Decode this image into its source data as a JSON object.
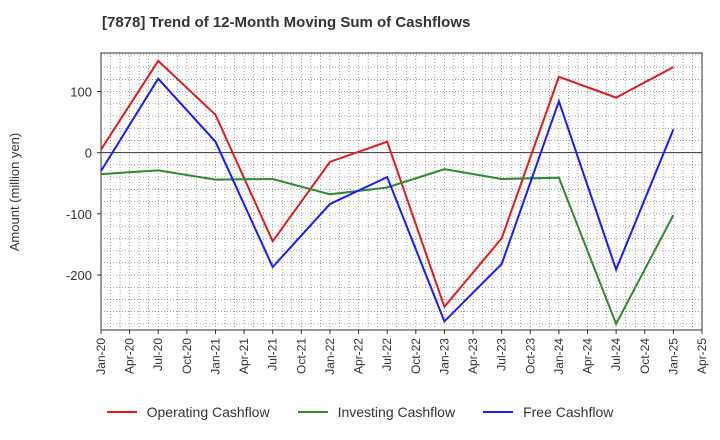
{
  "chart_data": {
    "type": "line",
    "title": "[7878]  Trend of 12-Month Moving Sum of Cashflows",
    "xlabel": "",
    "ylabel": "Amount (million yen)",
    "ylim": [
      -290,
      163
    ],
    "yticks": [
      100,
      0,
      -100,
      -200
    ],
    "x_tick_labels": [
      "Jan-20",
      "Apr-20",
      "Jul-20",
      "Oct-20",
      "Jan-21",
      "Apr-21",
      "Jul-21",
      "Oct-21",
      "Jan-22",
      "Apr-22",
      "Jul-22",
      "Oct-22",
      "Jan-23",
      "Apr-23",
      "Jul-23",
      "Oct-23",
      "Jan-24",
      "Apr-24",
      "Jul-24",
      "Oct-24",
      "Jan-25",
      "Apr-25"
    ],
    "x": [
      "Jan-20",
      "Jul-20",
      "Jan-21",
      "Jul-21",
      "Jan-22",
      "Jul-22",
      "Jan-23",
      "Jul-23",
      "Jan-24",
      "Jul-24",
      "Jan-25"
    ],
    "series": [
      {
        "name": "Operating Cashflow",
        "color": "#e31a1c",
        "values": [
          5,
          150,
          62,
          -145,
          -15,
          18,
          -252,
          -140,
          124,
          90,
          140
        ]
      },
      {
        "name": "Investing Cashflow",
        "color": "#2e8b2e",
        "values": [
          -35,
          -29,
          -44,
          -43,
          -68,
          -57,
          -27,
          -43,
          -41,
          -280,
          -102
        ]
      },
      {
        "name": "Free Cashflow",
        "color": "#1a1aff",
        "values": [
          -30,
          121,
          18,
          -187,
          -84,
          -40,
          -276,
          -182,
          84,
          -191,
          38
        ]
      }
    ],
    "grid": true,
    "legend_position": "bottom"
  }
}
